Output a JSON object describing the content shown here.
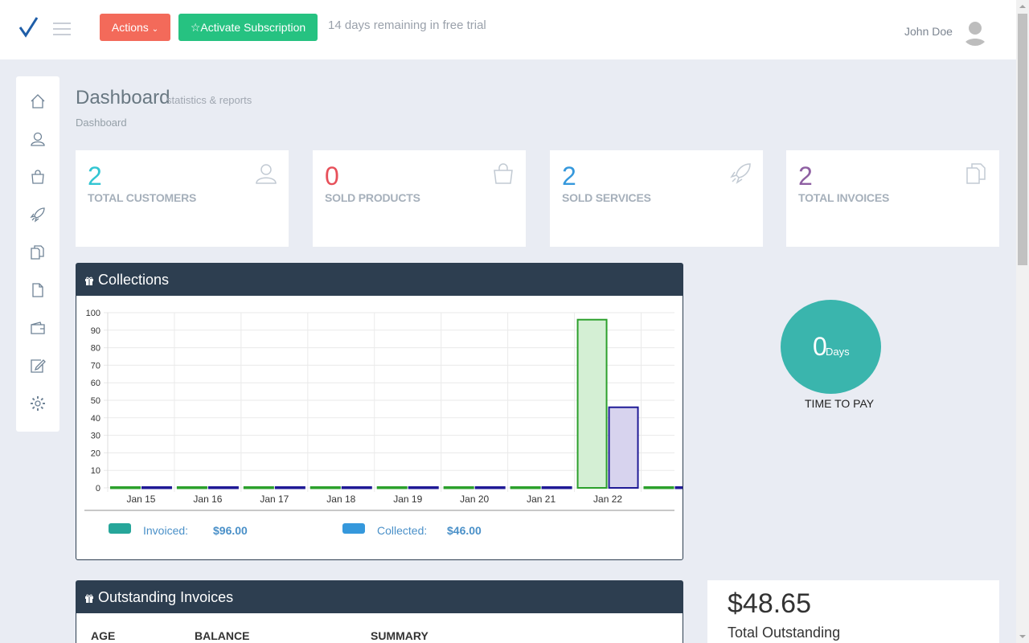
{
  "header": {
    "actions_label": "Actions",
    "activate_label": "Activate Subscription",
    "trial_text": "14 days remaining in free trial",
    "user_name": "John Doe"
  },
  "page": {
    "title": "Dashboard",
    "subtitle": "statistics & reports",
    "breadcrumb": "Dashboard"
  },
  "tiles": [
    {
      "value": "2",
      "label": "TOTAL CUSTOMERS",
      "color": "#32c5d2"
    },
    {
      "value": "0",
      "label": "SOLD PRODUCTS",
      "color": "#e7505a"
    },
    {
      "value": "2",
      "label": "SOLD SERVICES",
      "color": "#3598dc"
    },
    {
      "value": "2",
      "label": "TOTAL INVOICES",
      "color": "#8e5fa2"
    }
  ],
  "collections": {
    "title": "Collections",
    "legend": {
      "invoiced_label": "Invoiced:",
      "invoiced_value": "$96.00",
      "invoiced_color": "#26a69a",
      "collected_label": "Collected:",
      "collected_value": "$46.00",
      "collected_color": "#3598dc"
    }
  },
  "chart_data": {
    "type": "bar",
    "categories": [
      "Jan 15",
      "Jan 16",
      "Jan 17",
      "Jan 18",
      "Jan 19",
      "Jan 20",
      "Jan 21",
      "Jan 22",
      ""
    ],
    "series": [
      {
        "name": "Invoiced",
        "values": [
          0,
          0,
          0,
          0,
          0,
          0,
          0,
          96,
          0
        ],
        "stroke": "#2ca02c",
        "fill": "#d4efd4"
      },
      {
        "name": "Collected",
        "values": [
          0,
          0,
          0,
          0,
          0,
          0,
          0,
          46,
          0
        ],
        "stroke": "#1f1a96",
        "fill": "#d7d3ee"
      }
    ],
    "ylim": [
      0,
      100
    ],
    "yticks": [
      0,
      10,
      20,
      30,
      40,
      50,
      60,
      70,
      80,
      90,
      100
    ],
    "grid": true
  },
  "time_to_pay": {
    "value": "0",
    "unit": "Days",
    "label": "TIME TO PAY"
  },
  "outstanding": {
    "title": "Outstanding Invoices",
    "columns": [
      "AGE",
      "BALANCE",
      "SUMMARY"
    ],
    "total_amount": "$48.65",
    "total_label": "Total Outstanding"
  }
}
